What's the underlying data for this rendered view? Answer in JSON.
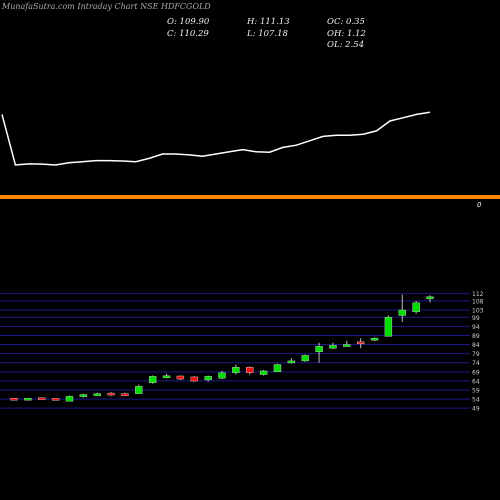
{
  "watermark": "MunafaSutra.com",
  "symbol_line": "Intraday Chart NSE HDFCGOLD",
  "ohlc": {
    "open": "O: 109.90",
    "close": "C: 110.29",
    "high": "H: 111.13",
    "low": "L: 107.18",
    "oc": "OC: 0.35",
    "oh": "OH: 1.12",
    "ol": "OL: 2.54"
  },
  "colors": {
    "background": "#000000",
    "up": "#00dd00",
    "down": "#ee1111",
    "line": "#ffffff",
    "separator": "#ff8800",
    "grid": "#1a1a8a"
  },
  "separator_label": "0",
  "chart_data": [
    {
      "type": "line",
      "series": [
        {
          "values": [
            72,
            49,
            49.5,
            49.4,
            49,
            50,
            50.5,
            51,
            51,
            50.8,
            50.5,
            52,
            54,
            54,
            53.6,
            53,
            54,
            55,
            56,
            55,
            54.8,
            57,
            58,
            60,
            62,
            62.5,
            62.5,
            63,
            64.5,
            69,
            70.5,
            72,
            73
          ]
        }
      ]
    },
    {
      "type": "candlestick",
      "ylim": [
        48,
        114
      ],
      "y_ticks": [
        112,
        108,
        103,
        99,
        94,
        89,
        84,
        79,
        74,
        69,
        64,
        59,
        54,
        49
      ],
      "candles": [
        {
          "o": 54.5,
          "h": 54.5,
          "l": 53.5,
          "c": 53.5
        },
        {
          "o": 53.5,
          "h": 54.5,
          "l": 53.5,
          "c": 54.5
        },
        {
          "o": 54.8,
          "h": 54.8,
          "l": 53.8,
          "c": 53.9
        },
        {
          "o": 54.4,
          "h": 54.4,
          "l": 53.4,
          "c": 53.5
        },
        {
          "o": 52.8,
          "h": 56.0,
          "l": 52.8,
          "c": 55.5
        },
        {
          "o": 55.5,
          "h": 57.0,
          "l": 54.8,
          "c": 56.5
        },
        {
          "o": 56.5,
          "h": 57.5,
          "l": 56.0,
          "c": 57.0
        },
        {
          "o": 57.3,
          "h": 57.8,
          "l": 55.8,
          "c": 56.3
        },
        {
          "o": 57.0,
          "h": 57.5,
          "l": 56.0,
          "c": 56.5
        },
        {
          "o": 57.0,
          "h": 62.0,
          "l": 57.0,
          "c": 61.0
        },
        {
          "o": 63.0,
          "h": 67.0,
          "l": 62.5,
          "c": 66.5
        },
        {
          "o": 66.0,
          "h": 68.0,
          "l": 65.5,
          "c": 66.8
        },
        {
          "o": 66.7,
          "h": 67.0,
          "l": 64.5,
          "c": 65.0
        },
        {
          "o": 66.2,
          "h": 66.6,
          "l": 63.5,
          "c": 63.9
        },
        {
          "o": 64.6,
          "h": 67.0,
          "l": 63.5,
          "c": 66.5
        },
        {
          "o": 65.5,
          "h": 69.5,
          "l": 65.0,
          "c": 68.5
        },
        {
          "o": 68.5,
          "h": 73.0,
          "l": 67.5,
          "c": 71.5
        },
        {
          "o": 71.5,
          "h": 72.0,
          "l": 67.5,
          "c": 68.5
        },
        {
          "o": 67.5,
          "h": 70.0,
          "l": 67.0,
          "c": 69.5
        },
        {
          "o": 69.0,
          "h": 73.5,
          "l": 69.0,
          "c": 73.0
        },
        {
          "o": 74.0,
          "h": 76.5,
          "l": 73.5,
          "c": 75.0
        },
        {
          "o": 75.0,
          "h": 78.5,
          "l": 74.5,
          "c": 78.0
        },
        {
          "o": 80.0,
          "h": 85.0,
          "l": 74.0,
          "c": 83.0
        },
        {
          "o": 82.0,
          "h": 85.0,
          "l": 81.5,
          "c": 83.5
        },
        {
          "o": 83.5,
          "h": 86.0,
          "l": 82.8,
          "c": 84.0
        },
        {
          "o": 85.5,
          "h": 87.5,
          "l": 82.0,
          "c": 85.0
        },
        {
          "o": 86.5,
          "h": 88.0,
          "l": 86.0,
          "c": 87.5
        },
        {
          "o": 88.5,
          "h": 100.0,
          "l": 88.5,
          "c": 99.0
        },
        {
          "o": 100.0,
          "h": 111.5,
          "l": 96.5,
          "c": 103.0
        },
        {
          "o": 102.0,
          "h": 108.0,
          "l": 101.0,
          "c": 107.0
        },
        {
          "o": 109.9,
          "h": 111.13,
          "l": 107.18,
          "c": 110.29
        }
      ]
    }
  ]
}
